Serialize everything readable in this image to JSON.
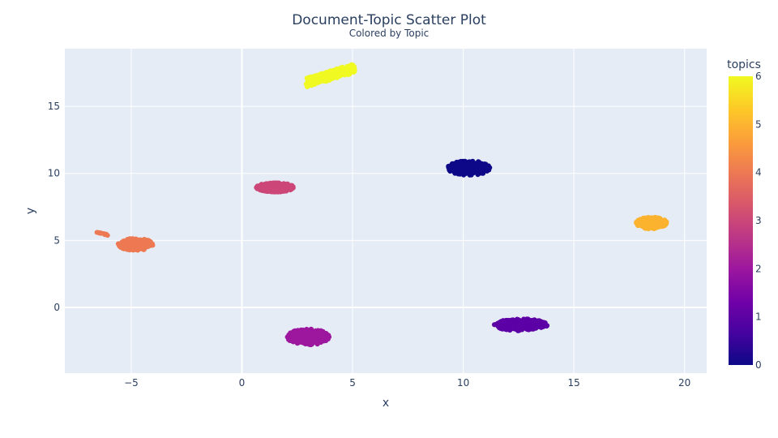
{
  "chart_data": {
    "type": "scatter",
    "title": "Document-Topic Scatter Plot",
    "subtitle": "Colored by Topic",
    "xlabel": "x",
    "ylabel": "y",
    "xlim": [
      -8,
      21
    ],
    "ylim": [
      -4.9,
      19.3
    ],
    "x_ticks": [
      -5,
      0,
      5,
      10,
      15,
      20
    ],
    "x_tick_labels": [
      "−5",
      "0",
      "5",
      "10",
      "15",
      "20"
    ],
    "y_ticks": [
      0,
      5,
      10,
      15
    ],
    "y_tick_labels": [
      "0",
      "5",
      "10",
      "15"
    ],
    "grid": true,
    "colorbar": {
      "title": "topics",
      "min": 0,
      "max": 6,
      "ticks": [
        0,
        1,
        2,
        3,
        4,
        5,
        6
      ],
      "colors": [
        "#0d0887",
        "#46039f",
        "#7201a8",
        "#9c179e",
        "#bd3786",
        "#d8576b",
        "#ed7953",
        "#fb9f3a",
        "#fdca26",
        "#f0f921"
      ]
    },
    "clusters": [
      {
        "topic": 0,
        "color": "#0d0887",
        "center": [
          10.25,
          10.4
        ],
        "spread": [
          0.95,
          0.55
        ],
        "shape": "blob"
      },
      {
        "topic": 1,
        "color": "#5c01a6",
        "center": [
          12.6,
          -1.3
        ],
        "spread": [
          1.2,
          0.45
        ],
        "shape": "blob"
      },
      {
        "topic": 2,
        "color": "#9c179e",
        "center": [
          3.0,
          -2.2
        ],
        "spread": [
          0.95,
          0.6
        ],
        "shape": "blob"
      },
      {
        "topic": 3,
        "color": "#cc4778",
        "center": [
          1.5,
          8.95
        ],
        "spread": [
          0.85,
          0.35
        ],
        "shape": "blob"
      },
      {
        "topic": 4,
        "color": "#ed7953",
        "center": [
          -4.8,
          4.7
        ],
        "spread": [
          0.8,
          0.45
        ],
        "shape": "blob"
      },
      {
        "topic": 4,
        "color": "#ed7953",
        "center": [
          -6.3,
          5.5
        ],
        "spread": [
          0.25,
          0.08
        ],
        "shape": "streak"
      },
      {
        "topic": 5,
        "color": "#fbb32f",
        "center": [
          18.5,
          6.3
        ],
        "spread": [
          0.7,
          0.45
        ],
        "shape": "blob"
      },
      {
        "topic": 6,
        "color": "#f0f921",
        "center": [
          4.0,
          17.3
        ],
        "spread": [
          1.1,
          0.35
        ],
        "shape": "diagonal"
      }
    ]
  }
}
